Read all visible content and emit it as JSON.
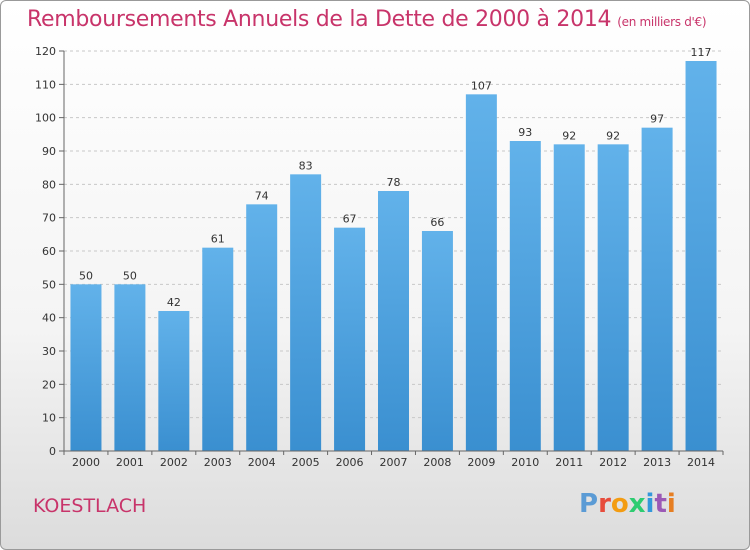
{
  "title": "Remboursements Annuels de la Dette de 2000 à 2014",
  "unit_note": "(en milliers d'€)",
  "place": "KOESTLACH",
  "logo": {
    "text": "Proxiti",
    "colors": [
      "#5b9bd5",
      "#e74c3c",
      "#f39c12",
      "#2ecc71",
      "#3498db",
      "#9b59b6",
      "#e67e22"
    ]
  },
  "colors": {
    "bar": "#3a8fd0",
    "bar_light": "#62b2ea",
    "title": "#c8346a"
  },
  "chart_data": {
    "type": "bar",
    "title": "Remboursements Annuels de la Dette de 2000 à 2014",
    "xlabel": "",
    "ylabel": "",
    "ylim": [
      0,
      120
    ],
    "yticks": [
      0,
      10,
      20,
      30,
      40,
      50,
      60,
      70,
      80,
      90,
      100,
      110,
      120
    ],
    "grid": true,
    "categories": [
      "2000",
      "2001",
      "2002",
      "2003",
      "2004",
      "2005",
      "2006",
      "2007",
      "2008",
      "2009",
      "2010",
      "2011",
      "2012",
      "2013",
      "2014"
    ],
    "values": [
      50,
      50,
      42,
      61,
      74,
      83,
      67,
      78,
      66,
      107,
      93,
      92,
      92,
      97,
      117
    ]
  }
}
